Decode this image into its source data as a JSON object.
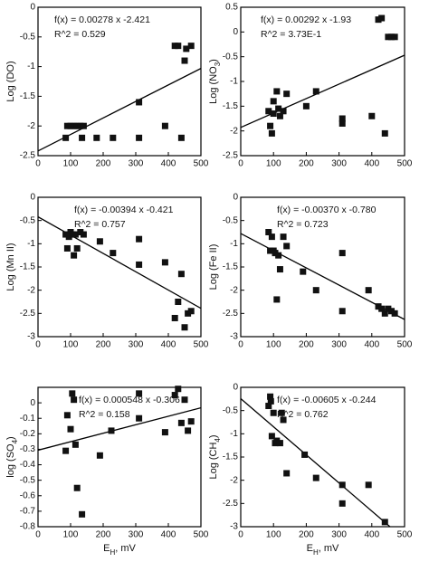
{
  "chart_data": [
    {
      "type": "scatter",
      "ylabel": [
        "Log (DO)"
      ],
      "equation": "f(x) = 0.00278 x  -2.421",
      "r2": "R^2 = 0.529",
      "fit": {
        "slope": 0.00278,
        "intercept": -2.421
      },
      "x": [
        85,
        90,
        100,
        110,
        120,
        130,
        140,
        135,
        180,
        230,
        310,
        310,
        390,
        420,
        430,
        440,
        450,
        455,
        470
      ],
      "y": [
        -2.2,
        -2.0,
        -2.0,
        -2.0,
        -2.0,
        -2.0,
        -2.0,
        -2.2,
        -2.2,
        -2.2,
        -2.2,
        -1.6,
        -2.0,
        -0.65,
        -0.65,
        -2.2,
        -0.9,
        -0.7,
        -0.65
      ],
      "xlim": [
        0,
        500
      ],
      "xticks": [
        0,
        100,
        200,
        300,
        400,
        500
      ],
      "ylim": [
        -2.5,
        0
      ],
      "yticks": [
        0,
        -0.5,
        -1,
        -1.5,
        -2,
        -2.5
      ],
      "color": "#111111"
    },
    {
      "type": "scatter",
      "ylabel": [
        "Log (NO",
        "3",
        ")"
      ],
      "equation": "f(x) = 0.00292 x  -1.93",
      "r2": "R^2 = 3.73E-1",
      "fit": {
        "slope": 0.00292,
        "intercept": -1.93
      },
      "x": [
        85,
        90,
        95,
        100,
        100,
        110,
        115,
        120,
        130,
        140,
        200,
        230,
        310,
        310,
        400,
        420,
        430,
        440,
        450,
        460,
        470
      ],
      "y": [
        -1.6,
        -1.9,
        -2.05,
        -1.4,
        -1.65,
        -1.2,
        -1.55,
        -1.7,
        -1.6,
        -1.25,
        -1.5,
        -1.2,
        -1.75,
        -1.85,
        -1.7,
        0.25,
        0.28,
        -2.05,
        -0.1,
        -0.1,
        -0.1
      ],
      "xlim": [
        0,
        500
      ],
      "xticks": [
        0,
        100,
        200,
        300,
        400,
        500
      ],
      "ylim": [
        -2.5,
        0.5
      ],
      "yticks": [
        0.5,
        0,
        -0.5,
        -1,
        -1.5,
        -2,
        -2.5
      ],
      "color": "#111111"
    },
    {
      "type": "scatter",
      "ylabel": [
        "Log (Mn II)"
      ],
      "equation": "f(x) = -0.00394 x  -0.421",
      "r2": "R^2 = 0.757",
      "fit": {
        "slope": -0.00394,
        "intercept": -0.421
      },
      "x": [
        85,
        90,
        95,
        100,
        105,
        110,
        115,
        120,
        130,
        140,
        190,
        230,
        310,
        310,
        390,
        420,
        430,
        440,
        450,
        460,
        470
      ],
      "y": [
        -0.8,
        -1.1,
        -0.85,
        -0.75,
        -0.8,
        -1.25,
        -0.8,
        -1.1,
        -0.75,
        -0.8,
        -0.95,
        -1.2,
        -0.9,
        -1.45,
        -1.4,
        -2.6,
        -2.25,
        -1.65,
        -2.8,
        -2.5,
        -2.45
      ],
      "xlim": [
        0,
        500
      ],
      "xticks": [
        0,
        100,
        200,
        300,
        400,
        500
      ],
      "ylim": [
        -3,
        0
      ],
      "yticks": [
        0,
        -0.5,
        -1,
        -1.5,
        -2,
        -2.5,
        -3
      ],
      "color": "#111111"
    },
    {
      "type": "scatter",
      "ylabel": [
        "Log (Fe II)"
      ],
      "equation": "f(x) = -0.00370 x  -0.780",
      "r2": "R^2 = 0.723",
      "fit": {
        "slope": -0.0037,
        "intercept": -0.78
      },
      "x": [
        85,
        90,
        95,
        100,
        105,
        110,
        115,
        120,
        130,
        140,
        190,
        230,
        310,
        310,
        390,
        420,
        430,
        440,
        450,
        460,
        470
      ],
      "y": [
        -0.75,
        -1.15,
        -0.85,
        -1.15,
        -1.2,
        -2.2,
        -1.25,
        -1.55,
        -0.85,
        -1.05,
        -1.6,
        -2.0,
        -2.45,
        -1.2,
        -2.0,
        -2.35,
        -2.4,
        -2.5,
        -2.4,
        -2.45,
        -2.5
      ],
      "xlim": [
        0,
        500
      ],
      "xticks": [
        0,
        100,
        200,
        300,
        400,
        500
      ],
      "ylim": [
        -3,
        0
      ],
      "yticks": [
        0,
        -0.5,
        -1,
        -1.5,
        -2,
        -2.5,
        -3
      ],
      "color": "#111111"
    },
    {
      "type": "scatter",
      "ylabel": [
        "log (SO",
        "4",
        ")"
      ],
      "xlabel": [
        "E",
        "H",
        ", mV"
      ],
      "equation": "f(x) = 0.000548 x  -0.306",
      "r2": "R^2 = 0.158",
      "fit": {
        "slope": 0.000548,
        "intercept": -0.306
      },
      "x": [
        85,
        90,
        100,
        105,
        110,
        115,
        120,
        135,
        190,
        225,
        310,
        310,
        390,
        420,
        430,
        440,
        450,
        460,
        470
      ],
      "y": [
        -0.31,
        -0.08,
        -0.17,
        0.06,
        0.02,
        -0.27,
        -0.55,
        -0.72,
        -0.34,
        -0.18,
        0.06,
        -0.1,
        -0.19,
        0.05,
        0.09,
        -0.13,
        0.02,
        -0.18,
        -0.12
      ],
      "xlim": [
        0,
        500
      ],
      "xticks": [
        0,
        100,
        200,
        300,
        400,
        500
      ],
      "ylim": [
        -0.8,
        0.1
      ],
      "yticks": [
        0,
        -0.1,
        -0.2,
        -0.3,
        -0.4,
        -0.5,
        -0.6,
        -0.7,
        -0.8
      ],
      "color": "#111111"
    },
    {
      "type": "scatter",
      "ylabel": [
        "Log (CH",
        "4",
        ")"
      ],
      "xlabel": [
        "E",
        "H",
        ", mV"
      ],
      "equation": "f(x) = -0.00605 x  -0.244",
      "r2": "R^2 = 0.762",
      "fit": {
        "slope": -0.00605,
        "intercept": -0.244
      },
      "x": [
        85,
        90,
        92,
        95,
        100,
        105,
        110,
        120,
        125,
        130,
        140,
        195,
        230,
        310,
        310,
        390,
        440
      ],
      "y": [
        -0.4,
        -0.2,
        -0.3,
        -1.05,
        -0.55,
        -1.2,
        -1.15,
        -1.2,
        -0.55,
        -0.7,
        -1.85,
        -1.45,
        -1.95,
        -2.1,
        -2.5,
        -2.1,
        -2.9
      ],
      "xlim": [
        0,
        500
      ],
      "xticks": [
        0,
        100,
        200,
        300,
        400,
        500
      ],
      "ylim": [
        -3,
        0
      ],
      "yticks": [
        0,
        -0.5,
        -1,
        -1.5,
        -2,
        -2.5,
        -3
      ],
      "color": "#111111"
    }
  ]
}
